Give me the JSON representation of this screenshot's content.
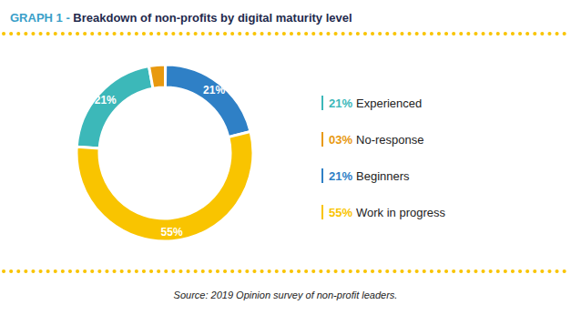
{
  "chart_data": {
    "type": "pie",
    "title": "GRAPH 1 - Breakdown of non-profits by digital maturity level",
    "categories": [
      "Experienced",
      "No-response",
      "Beginners",
      "Work in progress"
    ],
    "values": [
      21,
      3,
      21,
      55
    ],
    "value_labels": [
      "21%",
      "03%",
      "21%",
      "55%"
    ],
    "colors": [
      "#3cb8b9",
      "#e8990f",
      "#2f80c6",
      "#f9c400"
    ],
    "data_labels": true,
    "legend": "right",
    "annotations": [
      "Source: 2019 Opinion survey of non-profit leaders."
    ]
  }
}
